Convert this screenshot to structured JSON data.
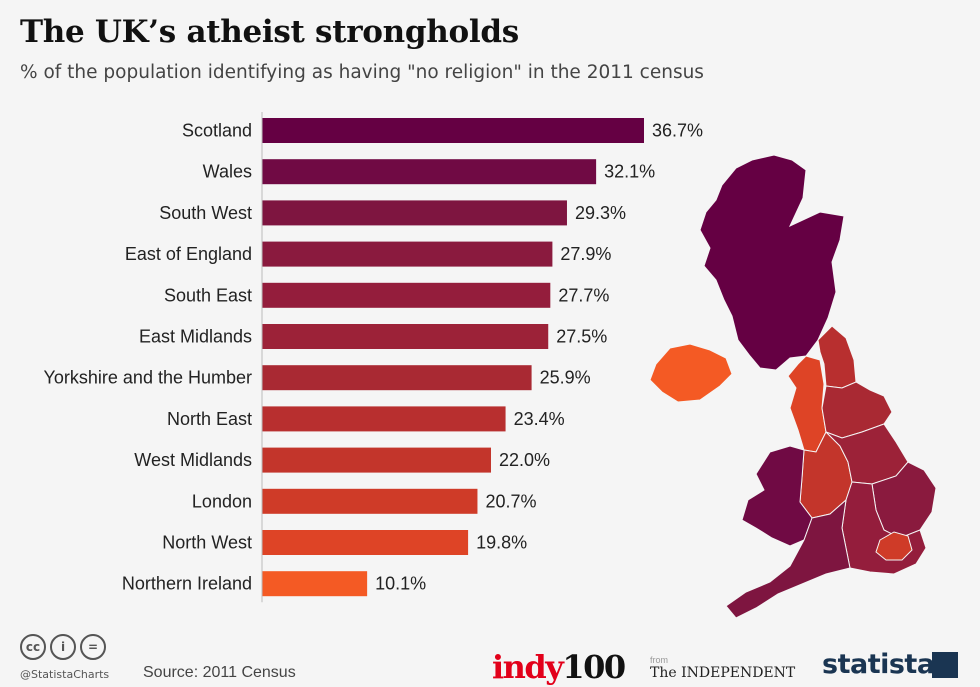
{
  "header": {
    "title": "The UK’s atheist strongholds",
    "subtitle": "% of the population identifying as having \"no religion\" in the 2011 census"
  },
  "chart_data": {
    "type": "bar",
    "orientation": "horizontal",
    "categories": [
      "Scotland",
      "Wales",
      "South West",
      "East of England",
      "South East",
      "East Midlands",
      "Yorkshire and the Humber",
      "North East",
      "West Midlands",
      "London",
      "North West",
      "Northern Ireland"
    ],
    "values": [
      36.7,
      32.1,
      29.3,
      27.9,
      27.7,
      27.5,
      25.9,
      23.4,
      22.0,
      20.7,
      19.8,
      10.1
    ],
    "value_labels": [
      "36.7%",
      "32.1%",
      "29.3%",
      "27.9%",
      "27.7%",
      "27.5%",
      "25.9%",
      "23.4%",
      "22.0%",
      "20.7%",
      "19.8%",
      "10.1%"
    ],
    "bar_colors": [
      "#650043",
      "#700a44",
      "#7e1540",
      "#8a1a3e",
      "#941d3c",
      "#9c2238",
      "#a92933",
      "#b82f2f",
      "#c3352b",
      "#cf3b28",
      "#de4426",
      "#f45a24"
    ],
    "map_colors": {
      "scotland": "#650043",
      "wales": "#700a44",
      "south_west": "#7e1540",
      "east_of_england": "#8a1a3e",
      "south_east": "#941d3c",
      "east_midlands": "#9c2238",
      "yorkshire": "#a92933",
      "north_east": "#b82f2f",
      "west_midlands": "#c3352b",
      "london": "#cf3b28",
      "north_west": "#de4426",
      "northern_ireland": "#f45a24"
    },
    "xlim": [
      0,
      40
    ],
    "grid": false,
    "legend": "none"
  },
  "footer": {
    "cc_icons": [
      "cc",
      "i",
      "="
    ],
    "handle": "@StatistaCharts",
    "source": "Source: 2011 Census",
    "brand_indy_a": "indy",
    "brand_indy_b": "100",
    "brand_from": "from",
    "brand_independent": "The INDEPENDENT",
    "brand_statista": "statista"
  }
}
